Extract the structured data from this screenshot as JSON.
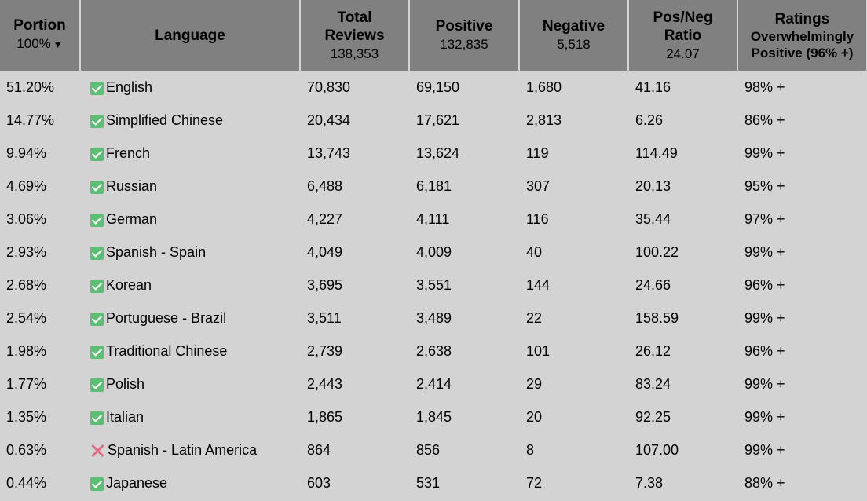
{
  "header": {
    "portion": {
      "title": "Portion",
      "sub": "100%",
      "sort_arrow": "▼"
    },
    "language": {
      "title": "Language"
    },
    "total": {
      "title1": "Total",
      "title2": "Reviews",
      "sub": "138,353"
    },
    "positive": {
      "title": "Positive",
      "sub": "132,835"
    },
    "negative": {
      "title": "Negative",
      "sub": "5,518"
    },
    "ratio": {
      "title1": "Pos/Neg",
      "title2": "Ratio",
      "sub": "24.07"
    },
    "ratings": {
      "title": "Ratings",
      "sub1": "Overwhelmingly",
      "sub2": "Positive (96% +)"
    }
  },
  "rows": [
    {
      "portion": "51.20%",
      "icon": "check-icon",
      "language": "English",
      "total": "70,830",
      "positive": "69,150",
      "negative": "1,680",
      "ratio": "41.16",
      "rating": "98% +"
    },
    {
      "portion": "14.77%",
      "icon": "check-icon",
      "language": "Simplified Chinese",
      "total": "20,434",
      "positive": "17,621",
      "negative": "2,813",
      "ratio": "6.26",
      "rating": "86% +"
    },
    {
      "portion": "9.94%",
      "icon": "check-icon",
      "language": "French",
      "total": "13,743",
      "positive": "13,624",
      "negative": "119",
      "ratio": "114.49",
      "rating": "99% +"
    },
    {
      "portion": "4.69%",
      "icon": "check-icon",
      "language": "Russian",
      "total": "6,488",
      "positive": "6,181",
      "negative": "307",
      "ratio": "20.13",
      "rating": "95% +"
    },
    {
      "portion": "3.06%",
      "icon": "check-icon",
      "language": "German",
      "total": "4,227",
      "positive": "4,111",
      "negative": "116",
      "ratio": "35.44",
      "rating": "97% +"
    },
    {
      "portion": "2.93%",
      "icon": "check-icon",
      "language": "Spanish - Spain",
      "total": "4,049",
      "positive": "4,009",
      "negative": "40",
      "ratio": "100.22",
      "rating": "99% +"
    },
    {
      "portion": "2.68%",
      "icon": "check-icon",
      "language": "Korean",
      "total": "3,695",
      "positive": "3,551",
      "negative": "144",
      "ratio": "24.66",
      "rating": "96% +"
    },
    {
      "portion": "2.54%",
      "icon": "check-icon",
      "language": "Portuguese - Brazil",
      "total": "3,511",
      "positive": "3,489",
      "negative": "22",
      "ratio": "158.59",
      "rating": "99% +"
    },
    {
      "portion": "1.98%",
      "icon": "check-icon",
      "language": "Traditional Chinese",
      "total": "2,739",
      "positive": "2,638",
      "negative": "101",
      "ratio": "26.12",
      "rating": "96% +"
    },
    {
      "portion": "1.77%",
      "icon": "check-icon",
      "language": "Polish",
      "total": "2,443",
      "positive": "2,414",
      "negative": "29",
      "ratio": "83.24",
      "rating": "99% +"
    },
    {
      "portion": "1.35%",
      "icon": "check-icon",
      "language": "Italian",
      "total": "1,865",
      "positive": "1,845",
      "negative": "20",
      "ratio": "92.25",
      "rating": "99% +"
    },
    {
      "portion": "0.63%",
      "icon": "cross-icon",
      "language": "Spanish - Latin America",
      "total": "864",
      "positive": "856",
      "negative": "8",
      "ratio": "107.00",
      "rating": "99% +"
    },
    {
      "portion": "0.44%",
      "icon": "check-icon",
      "language": "Japanese",
      "total": "603",
      "positive": "531",
      "negative": "72",
      "ratio": "7.38",
      "rating": "88% +"
    }
  ],
  "colors": {
    "header_bg": "#808080",
    "body_bg": "#d3d3d3",
    "check": "#5dbf74",
    "cross": "#e56b85"
  }
}
